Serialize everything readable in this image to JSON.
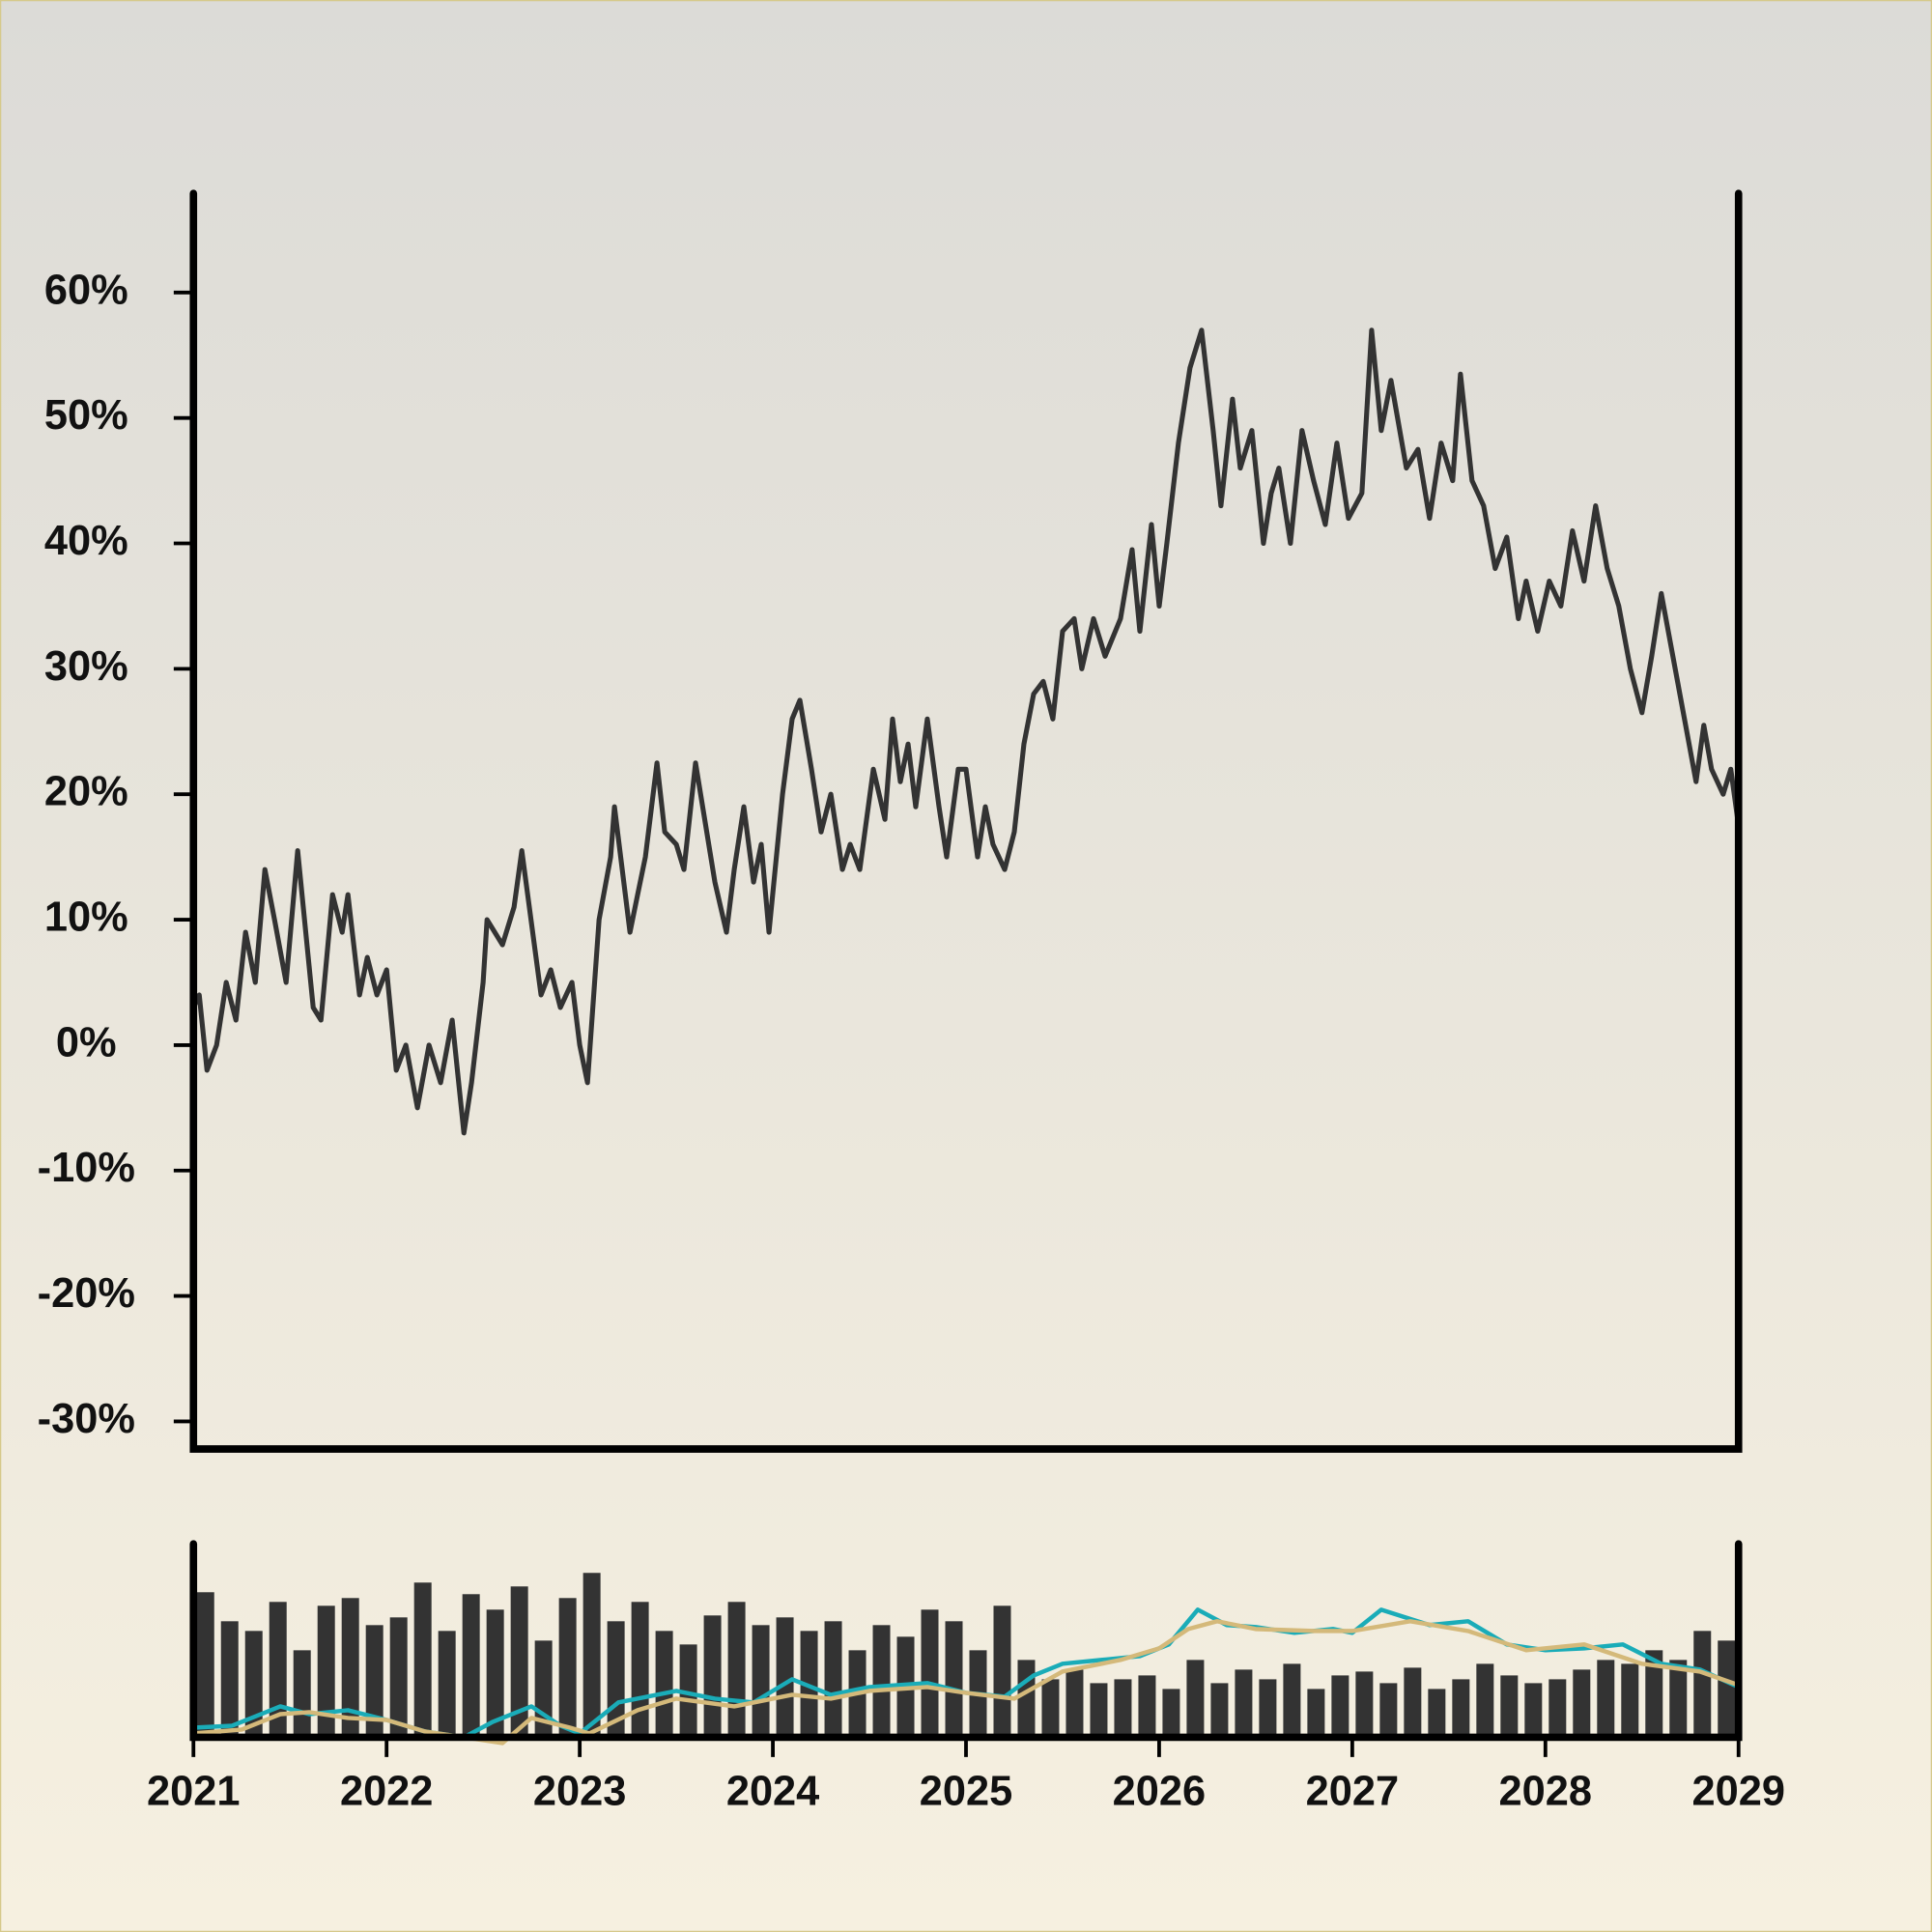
{
  "chart_data": [
    {
      "type": "line",
      "color": "#333333",
      "xlim": [
        2021,
        2029
      ],
      "ylim": [
        -32.2,
        67.9
      ],
      "yticks": [
        {
          "value": -30,
          "label": "-30%"
        },
        {
          "value": -20,
          "label": "-20%"
        },
        {
          "value": -10,
          "label": "-10%"
        },
        {
          "value": 0,
          "label": "0%"
        },
        {
          "value": 10,
          "label": "10%"
        },
        {
          "value": 20,
          "label": "20%"
        },
        {
          "value": 30,
          "label": "30%"
        },
        {
          "value": 40,
          "label": "40%"
        },
        {
          "value": 50,
          "label": "50%"
        },
        {
          "value": 60,
          "label": "60%"
        }
      ],
      "x": [
        2021.0,
        2021.03,
        2021.07,
        2021.12,
        2021.17,
        2021.22,
        2021.27,
        2021.32,
        2021.37,
        2021.42,
        2021.48,
        2021.54,
        2021.62,
        2021.66,
        2021.72,
        2021.77,
        2021.8,
        2021.86,
        2021.9,
        2021.95,
        2022.0,
        2022.05,
        2022.1,
        2022.16,
        2022.22,
        2022.28,
        2022.34,
        2022.4,
        2022.44,
        2022.5,
        2022.52,
        2022.6,
        2022.66,
        2022.7,
        2022.8,
        2022.85,
        2022.9,
        2022.96,
        2023.0,
        2023.04,
        2023.1,
        2023.16,
        2023.18,
        2023.26,
        2023.3,
        2023.34,
        2023.4,
        2023.44,
        2023.5,
        2023.54,
        2023.6,
        2023.7,
        2023.76,
        2023.8,
        2023.85,
        2023.9,
        2023.94,
        2023.98,
        2024.05,
        2024.1,
        2024.14,
        2024.2,
        2024.25,
        2024.3,
        2024.36,
        2024.4,
        2024.45,
        2024.52,
        2024.58,
        2024.62,
        2024.66,
        2024.7,
        2024.74,
        2024.8,
        2024.86,
        2024.9,
        2024.96,
        2025.0,
        2025.06,
        2025.1,
        2025.14,
        2025.2,
        2025.25,
        2025.3,
        2025.35,
        2025.4,
        2025.45,
        2025.5,
        2025.56,
        2025.6,
        2025.66,
        2025.72,
        2025.8,
        2025.86,
        2025.9,
        2025.96,
        2026.0,
        2026.04,
        2026.1,
        2026.16,
        2026.22,
        2026.28,
        2026.32,
        2026.38,
        2026.42,
        2026.48,
        2026.54,
        2026.58,
        2026.62,
        2026.68,
        2026.74,
        2026.8,
        2026.86,
        2026.92,
        2026.98,
        2027.05,
        2027.1,
        2027.15,
        2027.2,
        2027.28,
        2027.34,
        2027.4,
        2027.46,
        2027.52,
        2027.56,
        2027.62,
        2027.68,
        2027.74,
        2027.8,
        2027.86,
        2027.9,
        2027.96,
        2028.02,
        2028.08,
        2028.14,
        2028.2,
        2028.26,
        2028.32,
        2028.38,
        2028.44,
        2028.5,
        2028.55,
        2028.6,
        2028.66,
        2028.72,
        2028.78,
        2028.82,
        2028.86,
        2028.92,
        2028.96,
        2029.0
      ],
      "values": [
        3,
        4,
        -2,
        0,
        5,
        2,
        9,
        5,
        14,
        10,
        5,
        15.5,
        3,
        2,
        12,
        9,
        12,
        4,
        7,
        4,
        6,
        -2,
        0,
        -5,
        0,
        -3,
        2,
        -7,
        -3,
        5,
        10,
        8,
        11,
        15.5,
        4,
        6,
        3,
        5,
        0,
        -3,
        10,
        15,
        19,
        9,
        12,
        15,
        22.5,
        17,
        16,
        14,
        22.5,
        13,
        9,
        14,
        19,
        13,
        16,
        9,
        20,
        26,
        27.5,
        22,
        17,
        20,
        14,
        16,
        14,
        22,
        18,
        26,
        21,
        24,
        19,
        26,
        19,
        15,
        22,
        22,
        15,
        19,
        16,
        14,
        17,
        24,
        28,
        29,
        26,
        33,
        34,
        30,
        34,
        31,
        34,
        39.5,
        33,
        41.5,
        35,
        40,
        48,
        54,
        57,
        49,
        43,
        51.5,
        46,
        49,
        40,
        44,
        46,
        40,
        49,
        45,
        41.5,
        48,
        42,
        44,
        57,
        49,
        53,
        46,
        47.5,
        42,
        48,
        45,
        53.5,
        45,
        43,
        38,
        40.5,
        34,
        37,
        33,
        37,
        35,
        41,
        37,
        43,
        38,
        35,
        30,
        26.5,
        31,
        36,
        31,
        26,
        21,
        25.5,
        22,
        20,
        22,
        17.5
      ]
    },
    {
      "type": "bar",
      "color": "#333333",
      "xlim": [
        2021,
        2029
      ],
      "ylim": [
        0,
        100
      ],
      "xticks": [
        2021,
        2022,
        2023,
        2024,
        2025,
        2026,
        2027,
        2028,
        2029
      ],
      "x": [
        2021.0625,
        2021.1875,
        2021.3125,
        2021.4375,
        2021.5625,
        2021.6875,
        2021.8125,
        2021.9375,
        2022.0625,
        2022.1875,
        2022.3125,
        2022.4375,
        2022.5625,
        2022.6875,
        2022.8125,
        2022.9375,
        2023.0625,
        2023.1875,
        2023.3125,
        2023.4375,
        2023.5625,
        2023.6875,
        2023.8125,
        2023.9375,
        2024.0625,
        2024.1875,
        2024.3125,
        2024.4375,
        2024.5625,
        2024.6875,
        2024.8125,
        2024.9375,
        2025.0625,
        2025.1875,
        2025.3125,
        2025.4375,
        2025.5625,
        2025.6875,
        2025.8125,
        2025.9375,
        2026.0625,
        2026.1875,
        2026.3125,
        2026.4375,
        2026.5625,
        2026.6875,
        2026.8125,
        2026.9375,
        2027.0625,
        2027.1875,
        2027.3125,
        2027.4375,
        2027.5625,
        2027.6875,
        2027.8125,
        2027.9375,
        2028.0625,
        2028.1875,
        2028.3125,
        2028.4375,
        2028.5625,
        2028.6875,
        2028.8125,
        2028.9375
      ],
      "values": [
        75,
        60,
        55,
        70,
        45,
        68,
        72,
        58,
        62,
        80,
        55,
        74,
        66,
        78,
        50,
        72,
        85,
        60,
        70,
        55,
        48,
        63,
        70,
        58,
        62,
        55,
        60,
        45,
        58,
        52,
        66,
        60,
        45,
        68,
        40,
        30,
        35,
        28,
        30,
        32,
        25,
        40,
        28,
        35,
        30,
        38,
        25,
        32,
        34,
        28,
        36,
        25,
        30,
        38,
        32,
        28,
        30,
        35,
        40,
        38,
        45,
        40,
        55,
        50
      ],
      "series": [
        {
          "type": "line",
          "color": "#1aacb8",
          "x": [
            2021.0,
            2021.2,
            2021.45,
            2021.6,
            2021.8,
            2022.0,
            2022.2,
            2022.4,
            2022.55,
            2022.75,
            2022.9,
            2023.0,
            2023.2,
            2023.5,
            2023.7,
            2023.9,
            2024.1,
            2024.3,
            2024.5,
            2024.8,
            2025.0,
            2025.2,
            2025.35,
            2025.5,
            2025.7,
            2025.9,
            2026.05,
            2026.2,
            2026.35,
            2026.5,
            2026.7,
            2026.9,
            2027.0,
            2027.15,
            2027.4,
            2027.6,
            2027.8,
            2028.0,
            2028.2,
            2028.4,
            2028.6,
            2028.8,
            2029.0
          ],
          "values": [
            5,
            6,
            16,
            12,
            14,
            9,
            3,
            0,
            8,
            16,
            6,
            2,
            18,
            24,
            20,
            18,
            30,
            22,
            26,
            28,
            23,
            21,
            32,
            38,
            40,
            42,
            48,
            66,
            58,
            57,
            54,
            56,
            54,
            66,
            58,
            60,
            48,
            45,
            46,
            48,
            38,
            35,
            26
          ]
        },
        {
          "type": "line",
          "color": "#d4b97a",
          "x": [
            2021.0,
            2021.25,
            2021.45,
            2021.6,
            2021.8,
            2022.0,
            2022.2,
            2022.4,
            2022.6,
            2022.75,
            2022.95,
            2023.05,
            2023.3,
            2023.5,
            2023.8,
            2024.1,
            2024.3,
            2024.5,
            2024.8,
            2025.0,
            2025.25,
            2025.5,
            2025.8,
            2026.0,
            2026.15,
            2026.3,
            2026.5,
            2026.8,
            2027.0,
            2027.3,
            2027.6,
            2027.9,
            2028.2,
            2028.5,
            2028.8,
            2029.0
          ],
          "values": [
            2,
            4,
            12,
            13,
            10,
            9,
            3,
            0,
            -3,
            10,
            5,
            2,
            14,
            20,
            16,
            22,
            20,
            24,
            26,
            23,
            20,
            34,
            40,
            46,
            56,
            60,
            56,
            55,
            55,
            60,
            55,
            45,
            48,
            38,
            34,
            27
          ]
        }
      ]
    }
  ]
}
